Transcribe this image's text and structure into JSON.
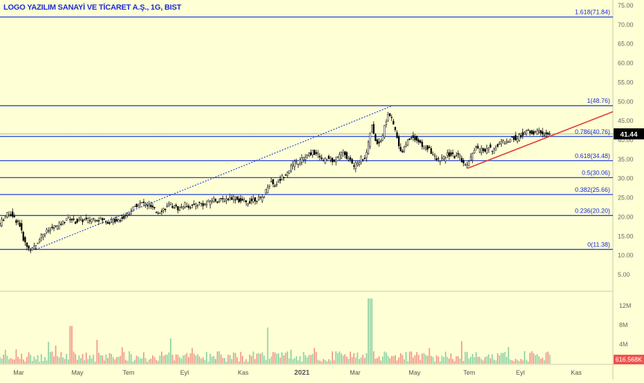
{
  "header": {
    "title": "LOGO YAZILIM SANAYİ VE TİCARET A.Ş., 1G, BIST"
  },
  "colors": {
    "background": "#ffffd5",
    "fib_line": "#1f3fd9",
    "price_text": "#1a2bd6",
    "candle": "#000000",
    "trendline": "#e03a30",
    "volume_up": "#8fd3a6",
    "volume_down": "#f19a8c",
    "last_price_bg": "#000000",
    "last_volume_bg": "#ef5350"
  },
  "chart_data": [
    {
      "type": "candlestick",
      "title": "LOGO YAZILIM SANAYİ VE TİCARET A.Ş., 1G, BIST",
      "yaxis_ticks": [
        "75.00",
        "70.00",
        "65.00",
        "60.00",
        "55.00",
        "50.00",
        "45.00",
        "40.00",
        "35.00",
        "30.00",
        "25.00",
        "20.00",
        "15.00",
        "10.00",
        "5.00"
      ],
      "ylim": [
        0,
        75
      ],
      "xaxis_ticks": [
        "Mar",
        "May",
        "Tem",
        "Eyl",
        "Kas",
        "2021",
        "Mar",
        "May",
        "Tem",
        "Eyl",
        "Kas"
      ],
      "last_price": "41.44",
      "fibonacci": [
        {
          "label": "1.618(71.84)",
          "value": 71.84
        },
        {
          "label": "1(48.76)",
          "value": 48.76
        },
        {
          "label": "0.786(40.76)",
          "value": 40.76
        },
        {
          "label": "0.618(34.48)",
          "value": 34.48
        },
        {
          "label": "0.5(30.06)",
          "value": 30.06
        },
        {
          "label": "0.382(25.66)",
          "value": 25.66
        },
        {
          "label": "0.236(20.20)",
          "value": 20.2
        },
        {
          "label": "0(11.38)",
          "value": 11.38
        }
      ],
      "price_path": [
        [
          0,
          17.5
        ],
        [
          8,
          19.5
        ],
        [
          15,
          20.8
        ],
        [
          20,
          20.5
        ],
        [
          25,
          19
        ],
        [
          30,
          18.5
        ],
        [
          35,
          15
        ],
        [
          40,
          12.5
        ],
        [
          45,
          11.6
        ],
        [
          50,
          11.4
        ],
        [
          55,
          12.6
        ],
        [
          60,
          14.5
        ],
        [
          65,
          15.5
        ],
        [
          70,
          16
        ],
        [
          75,
          16.5
        ],
        [
          80,
          17
        ],
        [
          85,
          17.2
        ],
        [
          90,
          18
        ],
        [
          95,
          18.5
        ],
        [
          100,
          20
        ],
        [
          105,
          19.5
        ],
        [
          110,
          18.5
        ],
        [
          120,
          19
        ],
        [
          130,
          19
        ],
        [
          140,
          19.5
        ],
        [
          150,
          19.2
        ],
        [
          160,
          18.5
        ],
        [
          170,
          19
        ],
        [
          180,
          19.5
        ],
        [
          190,
          21
        ],
        [
          200,
          23
        ],
        [
          210,
          23.5
        ],
        [
          220,
          22.5
        ],
        [
          230,
          21
        ],
        [
          240,
          22
        ],
        [
          250,
          23
        ],
        [
          260,
          22
        ],
        [
          270,
          23
        ],
        [
          280,
          22.5
        ],
        [
          290,
          23.5
        ],
        [
          300,
          23
        ],
        [
          310,
          24.5
        ],
        [
          320,
          24
        ],
        [
          330,
          24.5
        ],
        [
          340,
          25
        ],
        [
          350,
          24
        ],
        [
          360,
          23.5
        ],
        [
          370,
          24.5
        ],
        [
          380,
          24.5
        ],
        [
          385,
          25.5
        ],
        [
          390,
          28
        ],
        [
          395,
          29
        ],
        [
          400,
          28
        ],
        [
          405,
          29
        ],
        [
          410,
          30
        ],
        [
          415,
          31
        ],
        [
          420,
          32
        ],
        [
          425,
          33
        ],
        [
          430,
          34
        ],
        [
          435,
          34
        ],
        [
          440,
          35
        ],
        [
          445,
          35.5
        ],
        [
          450,
          36
        ],
        [
          455,
          37
        ],
        [
          460,
          36
        ],
        [
          465,
          36
        ],
        [
          470,
          34
        ],
        [
          475,
          35
        ],
        [
          480,
          35
        ],
        [
          485,
          34.5
        ],
        [
          490,
          35
        ],
        [
          495,
          36
        ],
        [
          500,
          37
        ],
        [
          505,
          35
        ],
        [
          510,
          34.5
        ],
        [
          515,
          33
        ],
        [
          520,
          34
        ],
        [
          525,
          35
        ],
        [
          530,
          35
        ],
        [
          535,
          38
        ],
        [
          540,
          44
        ],
        [
          545,
          40
        ],
        [
          550,
          39
        ],
        [
          555,
          40
        ],
        [
          560,
          44
        ],
        [
          565,
          47
        ],
        [
          570,
          45
        ],
        [
          575,
          42
        ],
        [
          580,
          38
        ],
        [
          585,
          37
        ],
        [
          590,
          39
        ],
        [
          595,
          40
        ],
        [
          600,
          41
        ],
        [
          605,
          40
        ],
        [
          610,
          39
        ],
        [
          615,
          38
        ],
        [
          620,
          38
        ],
        [
          625,
          37
        ],
        [
          630,
          36
        ],
        [
          635,
          34.5
        ],
        [
          640,
          35
        ],
        [
          645,
          35
        ],
        [
          650,
          36
        ],
        [
          655,
          36
        ],
        [
          660,
          35.5
        ],
        [
          665,
          36
        ],
        [
          670,
          35
        ],
        [
          675,
          33
        ],
        [
          680,
          34
        ],
        [
          685,
          35.5
        ],
        [
          690,
          38
        ],
        [
          695,
          37
        ],
        [
          700,
          37.5
        ],
        [
          705,
          37
        ],
        [
          710,
          38
        ],
        [
          715,
          37
        ],
        [
          720,
          38
        ],
        [
          725,
          39
        ],
        [
          730,
          39.5
        ],
        [
          735,
          39
        ],
        [
          740,
          40
        ],
        [
          745,
          40.5
        ],
        [
          750,
          40
        ],
        [
          755,
          41
        ],
        [
          760,
          41.5
        ],
        [
          765,
          42
        ],
        [
          770,
          42
        ],
        [
          775,
          41.5
        ],
        [
          780,
          42
        ],
        [
          785,
          42
        ],
        [
          790,
          41.5
        ],
        [
          795,
          41.2
        ],
        [
          798,
          41.4
        ]
      ],
      "volume_ticks": [
        "12M",
        "8M",
        "4M"
      ],
      "last_volume": "616.568K"
    }
  ]
}
